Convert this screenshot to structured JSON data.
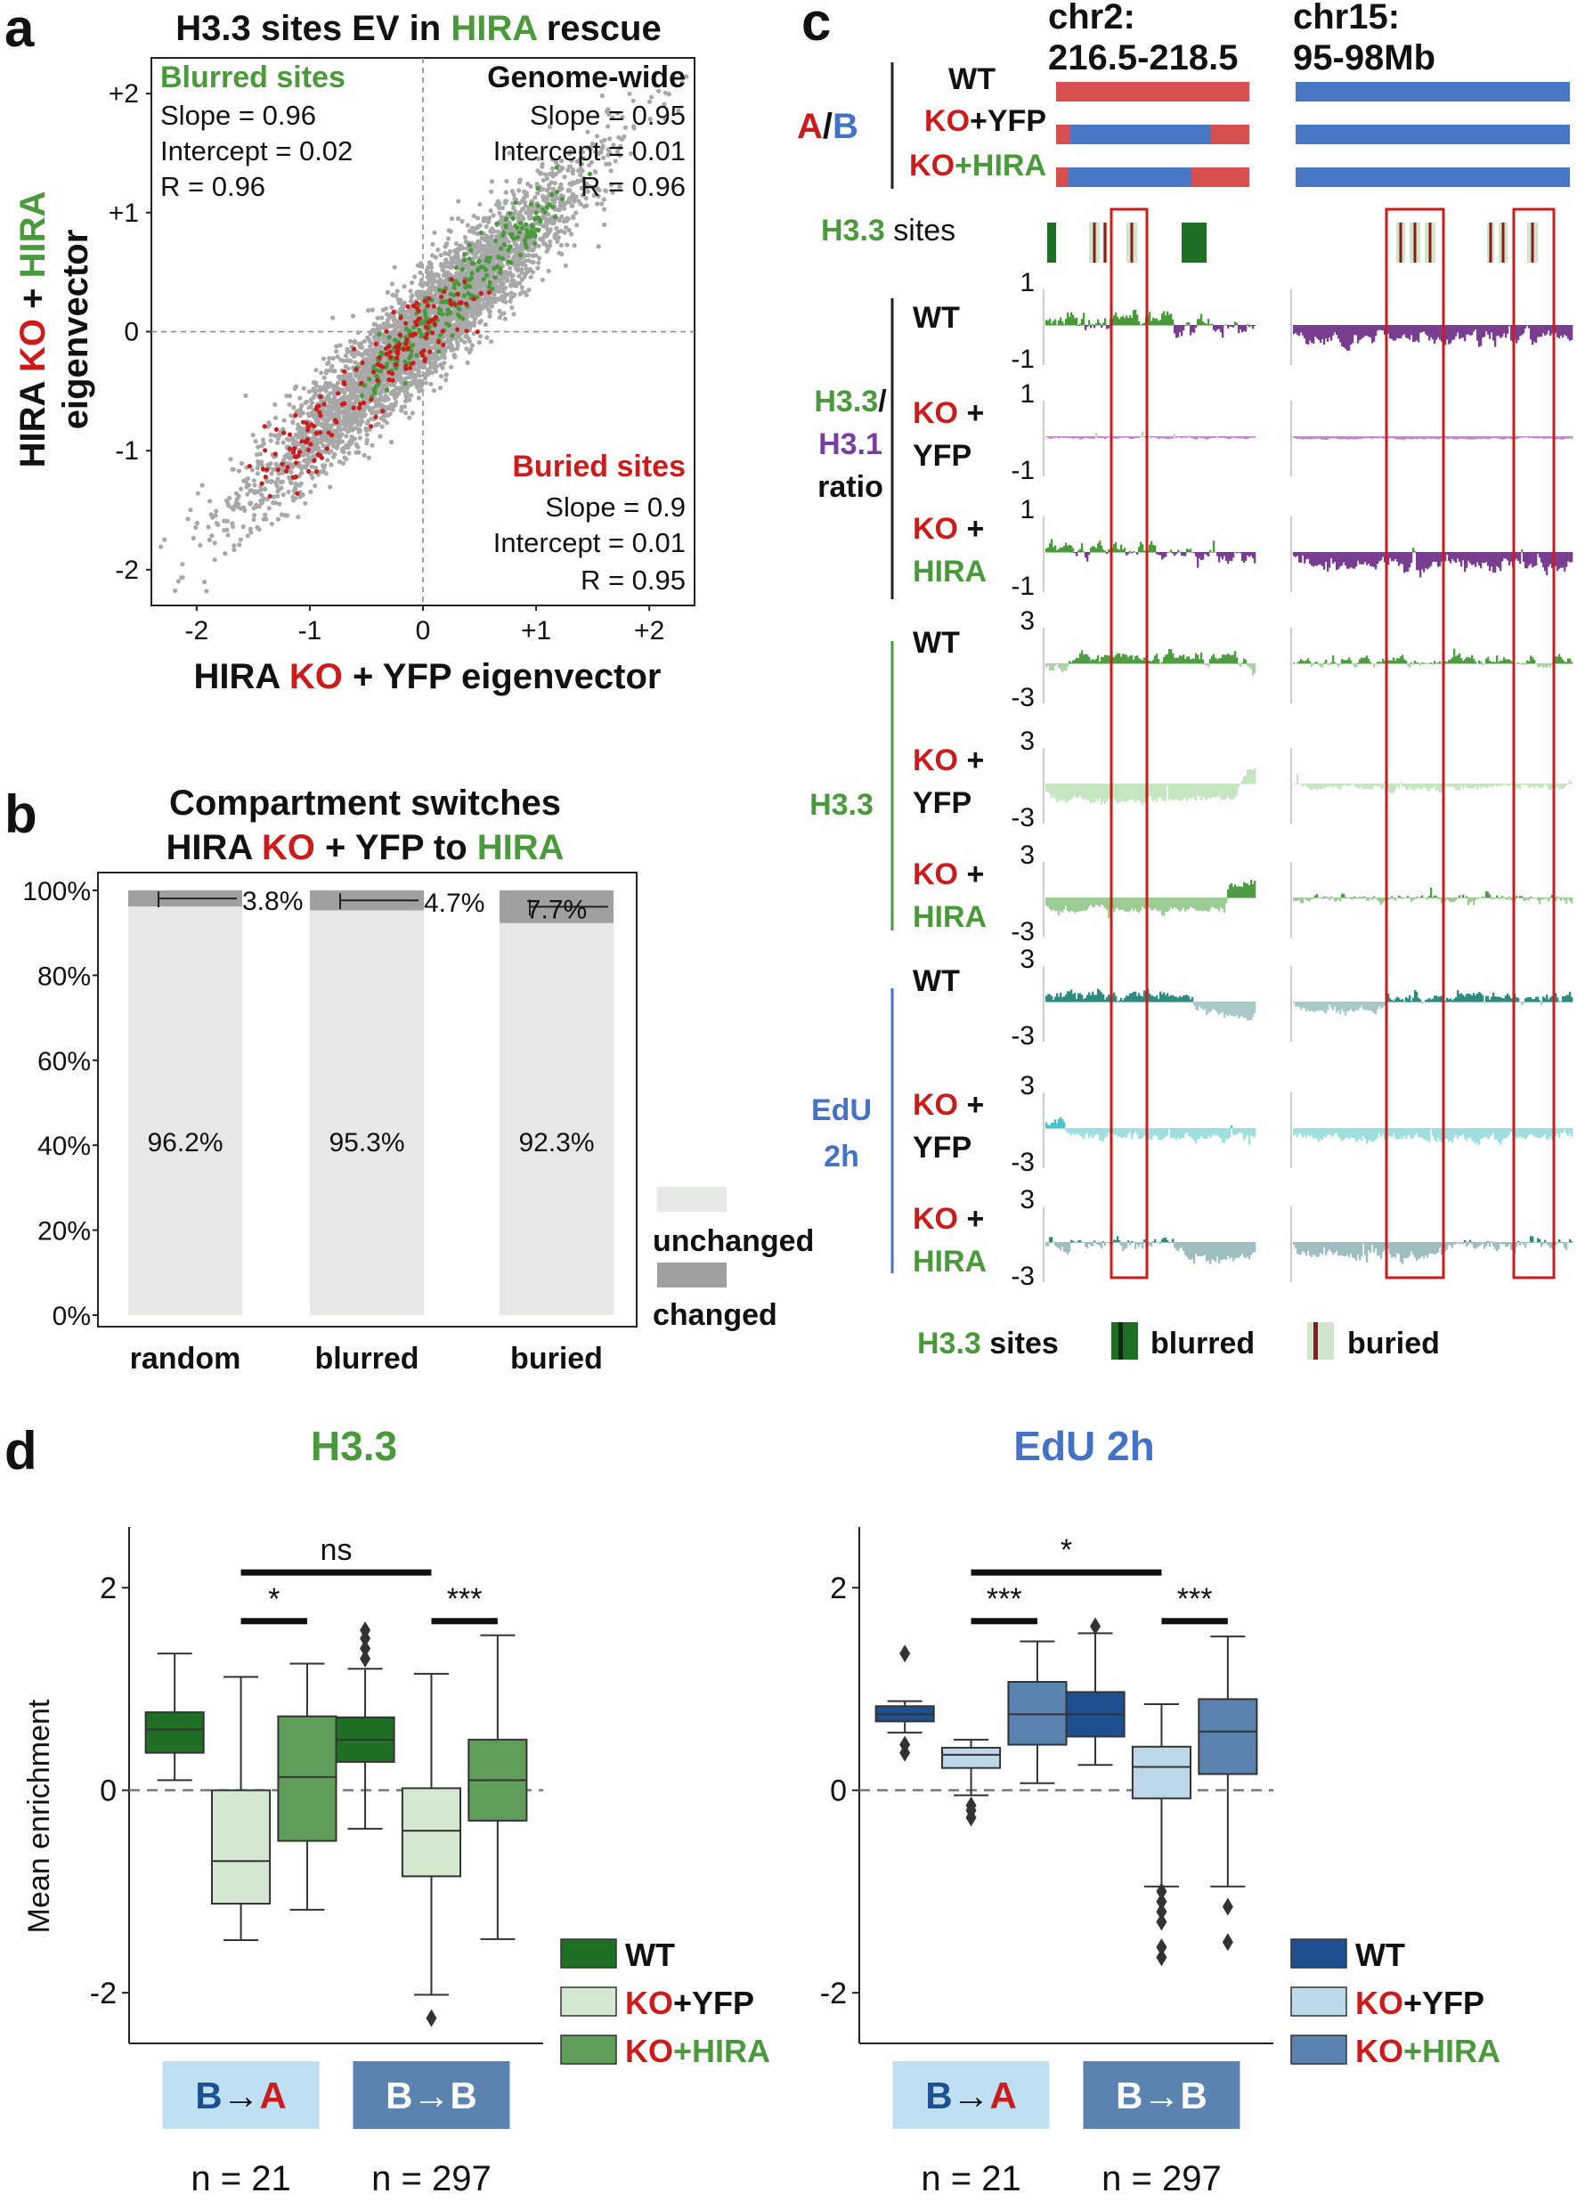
{
  "colors": {
    "green": "#4a9a3c",
    "red": "#cc1b1b",
    "blue": "#4472c4",
    "purple": "#7a3ea0",
    "gray": "#a8a8a8",
    "darkgreen": "#1f6f25",
    "lightgreen": "#cfe6cc",
    "midgreen": "#5f9e58",
    "wtblue": "#1d4f91",
    "lightblue": "#bcd8e9",
    "midblue": "#5b83b0",
    "teal": "#2f8a80",
    "cyan": "#7fd3d8",
    "slate": "#8fb3b8"
  },
  "panel_a": {
    "label": "a",
    "title": {
      "p1": "H3.3 sites EV in ",
      "p2": "HIRA",
      "p3": " rescue"
    },
    "ylabel": {
      "l1a": "HIRA ",
      "l1b": "KO",
      "l1c": " + ",
      "l1d": "HIRA",
      "l2": "eigenvector"
    },
    "xlabel": {
      "p1": "HIRA ",
      "p2": "KO",
      "p3": " + YFP eigenvector"
    },
    "blurred": {
      "title": "Blurred sites",
      "slope": "Slope = 0.96",
      "intercept": "Intercept = 0.02",
      "r": "R = 0.96"
    },
    "genome": {
      "title": "Genome-wide",
      "slope": "Slope = 0.95",
      "intercept": "Intercept = 0.01",
      "r": "R = 0.96"
    },
    "buried": {
      "title": "Buried sites",
      "slope": "Slope = 0.9",
      "intercept": "Intercept = 0.01",
      "r": "R = 0.95"
    }
  },
  "panel_b": {
    "label": "b",
    "title": {
      "l1": "Compartment switches",
      "l2a": "HIRA ",
      "l2b": "KO",
      "l2c": " + YFP to ",
      "l2d": "HIRA"
    },
    "legend": {
      "unchanged": "unchanged",
      "changed": "changed"
    }
  },
  "panel_c": {
    "label": "c",
    "regions": {
      "r1a": "chr2:",
      "r1b": "216.5-218.5",
      "r2a": "chr15:",
      "r2b": "95-98Mb"
    },
    "ab": {
      "A": "A",
      "slash": "/",
      "B": "B"
    },
    "rows": {
      "wt": "WT",
      "ko": "KO",
      "plus": " +",
      "yfp": "+YFP",
      "hira": "+HIRA",
      "YFP": "YFP",
      "HIRA": "HIRA"
    },
    "tracks": {
      "sites_a": "H3.3",
      "sites_b": " sites",
      "ratio_a": "H3.3",
      "ratio_slash": "/",
      "ratio_b": "H3.1",
      "ratio_c": "ratio",
      "h33": "H3.3",
      "edu1": "EdU",
      "edu2": "2h"
    },
    "ticks": {
      "p1": "1",
      "m1": "-1",
      "p3": "3",
      "m3": "-3"
    },
    "legend": {
      "a": "H3.3",
      "b": " sites",
      "blurred": "blurred",
      "buried": "buried"
    }
  },
  "panel_d": {
    "label": "d",
    "ylabel": "Mean enrichment",
    "counts": {
      "ba": "n = 21",
      "bb": "n = 297"
    },
    "groups": {
      "ba_from": "B",
      "ba_to": "A",
      "bb_from": "B",
      "bb_to": "B",
      "arrow": "→"
    },
    "legend": {
      "wt": "WT",
      "ko": "KO",
      "yfp": "+YFP",
      "hira": "+HIRA"
    }
  },
  "chart_data": [
    {
      "id": "a",
      "type": "scatter",
      "title": "H3.3 sites EV in HIRA rescue",
      "xlabel": "HIRA KO + YFP eigenvector",
      "ylabel": "HIRA KO + HIRA eigenvector",
      "xlim": [
        -2.4,
        2.4
      ],
      "ylim": [
        -2.3,
        2.3
      ],
      "xticks": [
        "-2",
        "-1",
        "0",
        "+1",
        "+2"
      ],
      "yticks": [
        "-2",
        "-1",
        "0",
        "+1",
        "+2"
      ],
      "series": [
        {
          "name": "Genome-wide",
          "color": "#a8a8a8",
          "slope": 0.95,
          "intercept": 0.01,
          "r": 0.96
        },
        {
          "name": "Blurred sites",
          "color": "#4a9a3c",
          "slope": 0.96,
          "intercept": 0.02,
          "r": 0.96
        },
        {
          "name": "Buried sites",
          "color": "#cc1b1b",
          "slope": 0.9,
          "intercept": 0.01,
          "r": 0.95
        }
      ]
    },
    {
      "id": "b",
      "type": "bar",
      "title": "Compartment switches HIRA KO + YFP to HIRA",
      "categories": [
        "random",
        "blurred",
        "buried"
      ],
      "yticks": [
        "0%",
        "20%",
        "40%",
        "60%",
        "80%",
        "100%"
      ],
      "ylim": [
        0,
        100
      ],
      "series": [
        {
          "name": "unchanged",
          "values": [
            96.2,
            95.3,
            92.3
          ],
          "labels": [
            "96.2%",
            "95.3%",
            "92.3%"
          ]
        },
        {
          "name": "changed",
          "values": [
            3.8,
            4.7,
            7.7
          ],
          "labels": [
            "3.8%",
            "4.7%",
            "7.7%"
          ]
        }
      ]
    },
    {
      "id": "d1",
      "type": "box",
      "title": "H3.3",
      "categories": [
        "B→A",
        "B→B"
      ],
      "series": [
        "WT",
        "KO+YFP",
        "KO+HIRA"
      ],
      "yticks": [
        "-2",
        "0",
        "2"
      ],
      "ylim": [
        -2.5,
        2.6
      ],
      "boxes": [
        {
          "group": 0,
          "series": 0,
          "min": 0.1,
          "q1": 0.37,
          "med": 0.6,
          "q3": 0.77,
          "max": 1.35,
          "out": []
        },
        {
          "group": 0,
          "series": 1,
          "min": -1.48,
          "q1": -1.12,
          "med": -0.7,
          "q3": 0.0,
          "max": 1.12,
          "out": []
        },
        {
          "group": 0,
          "series": 2,
          "min": -1.18,
          "q1": -0.5,
          "med": 0.13,
          "q3": 0.73,
          "max": 1.25,
          "out": []
        },
        {
          "group": 1,
          "series": 0,
          "min": -0.38,
          "q1": 0.28,
          "med": 0.5,
          "q3": 0.72,
          "max": 1.2,
          "out": [
            1.3,
            1.4,
            1.5,
            1.58
          ]
        },
        {
          "group": 1,
          "series": 1,
          "min": -2.02,
          "q1": -0.85,
          "med": -0.4,
          "q3": 0.02,
          "max": 1.15,
          "out": [
            -2.25
          ]
        },
        {
          "group": 1,
          "series": 2,
          "min": -1.47,
          "q1": -0.3,
          "med": 0.1,
          "q3": 0.5,
          "max": 1.53,
          "out": []
        }
      ],
      "sig": [
        {
          "label": "*",
          "from": [
            0,
            1
          ],
          "to": [
            0,
            2
          ],
          "y": 1.67
        },
        {
          "label": "***",
          "from": [
            1,
            1
          ],
          "to": [
            1,
            2
          ],
          "y": 1.67
        },
        {
          "label": "ns",
          "from": [
            0,
            1.5
          ],
          "to": [
            1,
            1.5
          ],
          "y": 2.15
        }
      ]
    },
    {
      "id": "d2",
      "type": "box",
      "title": "EdU 2h",
      "categories": [
        "B→A",
        "B→B"
      ],
      "series": [
        "WT",
        "KO+YFP",
        "KO+HIRA"
      ],
      "yticks": [
        "-2",
        "0",
        "2"
      ],
      "ylim": [
        -2.5,
        2.6
      ],
      "boxes": [
        {
          "group": 0,
          "series": 0,
          "min": 0.57,
          "q1": 0.68,
          "med": 0.75,
          "q3": 0.83,
          "max": 0.88,
          "out": [
            1.35,
            0.45,
            0.37
          ]
        },
        {
          "group": 0,
          "series": 1,
          "min": -0.05,
          "q1": 0.22,
          "med": 0.35,
          "q3": 0.42,
          "max": 0.5,
          "out": [
            -0.15,
            -0.2,
            -0.27
          ]
        },
        {
          "group": 0,
          "series": 2,
          "min": 0.07,
          "q1": 0.45,
          "med": 0.75,
          "q3": 1.07,
          "max": 1.47,
          "out": []
        },
        {
          "group": 1,
          "series": 0,
          "min": 0.25,
          "q1": 0.53,
          "med": 0.75,
          "q3": 0.97,
          "max": 1.55,
          "out": [
            1.62
          ]
        },
        {
          "group": 1,
          "series": 1,
          "min": -0.95,
          "q1": -0.08,
          "med": 0.23,
          "q3": 0.43,
          "max": 0.85,
          "out": [
            -1.0,
            -1.1,
            -1.2,
            -1.3,
            -1.55,
            -1.65
          ]
        },
        {
          "group": 1,
          "series": 2,
          "min": -0.95,
          "q1": 0.16,
          "med": 0.58,
          "q3": 0.9,
          "max": 1.52,
          "out": [
            -1.15,
            -1.5
          ]
        }
      ],
      "sig": [
        {
          "label": "***",
          "from": [
            0,
            1
          ],
          "to": [
            0,
            2
          ],
          "y": 1.67
        },
        {
          "label": "***",
          "from": [
            1,
            1
          ],
          "to": [
            1,
            2
          ],
          "y": 1.67
        },
        {
          "label": "*",
          "from": [
            0,
            1.5
          ],
          "to": [
            1,
            1.5
          ],
          "y": 2.15
        }
      ]
    }
  ]
}
